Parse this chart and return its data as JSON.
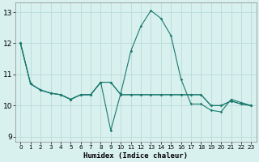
{
  "xlabel": "Humidex (Indice chaleur)",
  "background_color": "#d8f0ee",
  "grid_color": "#b8dbd8",
  "line_color": "#1a7a6e",
  "xlim": [
    -0.5,
    23.5
  ],
  "ylim": [
    8.85,
    13.3
  ],
  "yticks": [
    9,
    10,
    11,
    12,
    13
  ],
  "xticks": [
    0,
    1,
    2,
    3,
    4,
    5,
    6,
    7,
    8,
    9,
    10,
    11,
    12,
    13,
    14,
    15,
    16,
    17,
    18,
    19,
    20,
    21,
    22,
    23
  ],
  "series": [
    {
      "x": [
        0,
        1,
        2,
        3,
        4,
        5,
        6,
        7,
        8,
        9,
        10,
        11,
        12,
        13,
        14,
        15,
        16,
        17,
        18,
        19,
        20,
        21,
        22,
        23
      ],
      "y": [
        12.0,
        10.7,
        10.5,
        10.4,
        10.35,
        10.2,
        10.35,
        10.35,
        10.75,
        10.75,
        10.35,
        10.35,
        10.35,
        10.35,
        10.35,
        10.35,
        10.35,
        10.35,
        10.35,
        10.0,
        10.0,
        10.15,
        10.05,
        10.0
      ]
    },
    {
      "x": [
        0,
        1,
        2,
        3,
        4,
        5,
        6,
        7,
        8,
        9,
        10,
        11,
        12,
        13,
        14,
        15,
        16,
        17,
        18,
        19,
        20,
        21,
        22,
        23
      ],
      "y": [
        12.0,
        10.7,
        10.5,
        10.4,
        10.35,
        10.2,
        10.35,
        10.35,
        10.75,
        9.2,
        10.4,
        11.75,
        12.55,
        13.05,
        12.8,
        12.25,
        10.85,
        10.05,
        10.05,
        9.85,
        9.8,
        10.2,
        10.1,
        10.0
      ]
    },
    {
      "x": [
        0,
        1,
        2,
        3,
        4,
        5,
        6,
        7,
        8,
        9,
        10,
        11,
        12,
        13,
        14,
        15,
        16,
        17,
        18,
        19,
        20,
        21,
        22,
        23
      ],
      "y": [
        12.0,
        10.7,
        10.5,
        10.4,
        10.35,
        10.2,
        10.35,
        10.35,
        10.75,
        10.75,
        10.35,
        10.35,
        10.35,
        10.35,
        10.35,
        10.35,
        10.35,
        10.35,
        10.35,
        10.0,
        10.0,
        10.15,
        10.05,
        10.0
      ]
    }
  ]
}
